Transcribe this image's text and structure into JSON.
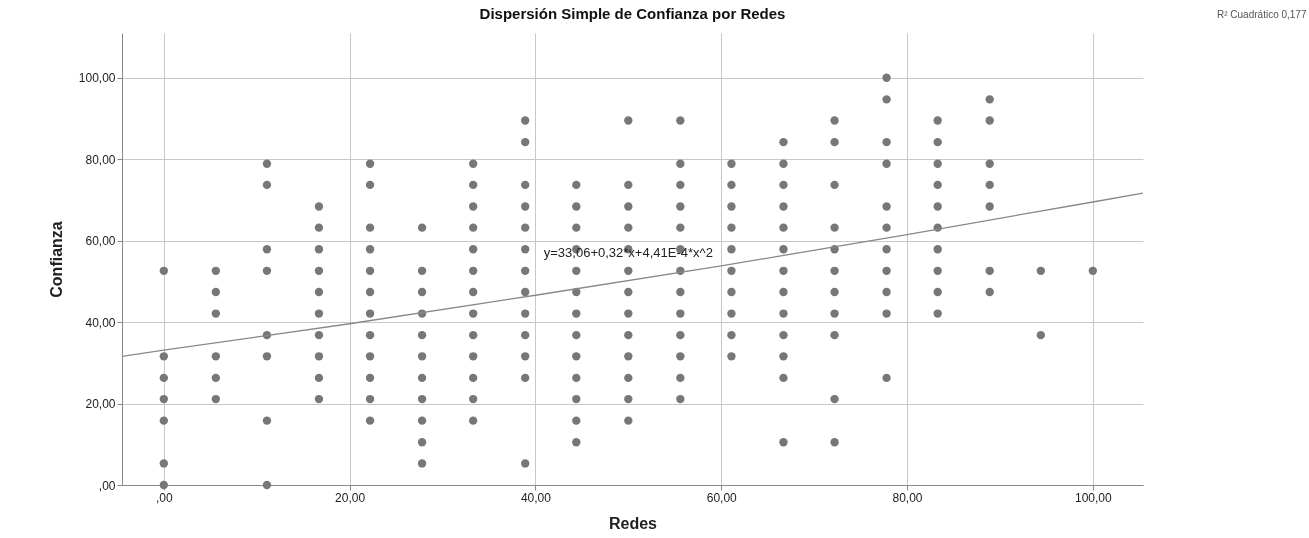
{
  "chart_data": {
    "type": "scatter",
    "title": "Dispersión Simple de Confianza por Redes",
    "xlabel": "Redes",
    "ylabel": "Confianza",
    "xlim": [
      -4.5,
      105.4
    ],
    "ylim": [
      0,
      111
    ],
    "xticks": [
      {
        "value": 0,
        "label": ",00"
      },
      {
        "value": 20,
        "label": "20,00"
      },
      {
        "value": 40,
        "label": "40,00"
      },
      {
        "value": 60,
        "label": "60,00"
      },
      {
        "value": 80,
        "label": "80,00"
      },
      {
        "value": 100,
        "label": "100,00"
      }
    ],
    "yticks": [
      {
        "value": 0,
        "label": ",00"
      },
      {
        "value": 20,
        "label": "20,00"
      },
      {
        "value": 40,
        "label": "40,00"
      },
      {
        "value": 60,
        "label": "60,00"
      },
      {
        "value": 80,
        "label": "80,00"
      },
      {
        "value": 100,
        "label": "100,00"
      }
    ],
    "grid": true,
    "marker": "circle",
    "annotations": [
      {
        "text": "y=33,06+0,32*x+4,41E-4*x^2",
        "x": 50,
        "y": 57
      },
      "R² Cuadrático 0,177"
    ],
    "series": [
      {
        "color": "#777777",
        "x": [
          0,
          0,
          0,
          0,
          0,
          0,
          0,
          5.6,
          5.6,
          5.6,
          5.6,
          5.6,
          5.6,
          11.1,
          11.1,
          11.1,
          11.1,
          11.1,
          11.1,
          11.1,
          11.1,
          16.7,
          16.7,
          16.7,
          16.7,
          16.7,
          16.7,
          16.7,
          16.7,
          16.7,
          16.7,
          22.2,
          22.2,
          22.2,
          22.2,
          22.2,
          22.2,
          22.2,
          22.2,
          22.2,
          22.2,
          22.2,
          22.2,
          27.8,
          27.8,
          27.8,
          27.8,
          27.8,
          27.8,
          27.8,
          27.8,
          27.8,
          27.8,
          27.8,
          33.3,
          33.3,
          33.3,
          33.3,
          33.3,
          33.3,
          33.3,
          33.3,
          33.3,
          33.3,
          33.3,
          33.3,
          33.3,
          38.9,
          38.9,
          38.9,
          38.9,
          38.9,
          38.9,
          38.9,
          38.9,
          38.9,
          38.9,
          38.9,
          38.9,
          38.9,
          44.4,
          44.4,
          44.4,
          44.4,
          44.4,
          44.4,
          44.4,
          44.4,
          44.4,
          44.4,
          44.4,
          44.4,
          44.4,
          50,
          50,
          50,
          50,
          50,
          50,
          50,
          50,
          50,
          50,
          50,
          50,
          50,
          55.6,
          55.6,
          55.6,
          55.6,
          55.6,
          55.6,
          55.6,
          55.6,
          55.6,
          55.6,
          55.6,
          55.6,
          55.6,
          61.1,
          61.1,
          61.1,
          61.1,
          61.1,
          61.1,
          61.1,
          61.1,
          61.1,
          61.1,
          66.7,
          66.7,
          66.7,
          66.7,
          66.7,
          66.7,
          66.7,
          66.7,
          66.7,
          66.7,
          66.7,
          66.7,
          66.7,
          72.2,
          72.2,
          72.2,
          72.2,
          72.2,
          72.2,
          72.2,
          72.2,
          72.2,
          72.2,
          72.2,
          77.8,
          77.8,
          77.8,
          77.8,
          77.8,
          77.8,
          77.8,
          77.8,
          77.8,
          77.8,
          77.8,
          83.3,
          83.3,
          83.3,
          83.3,
          83.3,
          83.3,
          83.3,
          83.3,
          83.3,
          83.3,
          88.9,
          88.9,
          88.9,
          88.9,
          88.9,
          88.9,
          88.9,
          94.4,
          94.4,
          100
        ],
        "values": [
          0,
          5.3,
          15.8,
          21.1,
          26.3,
          31.6,
          52.6,
          21.1,
          26.3,
          31.6,
          42.1,
          47.4,
          52.6,
          0,
          15.8,
          31.6,
          36.8,
          52.6,
          57.9,
          73.7,
          78.9,
          21.1,
          26.3,
          31.6,
          36.8,
          42.1,
          47.4,
          52.6,
          57.9,
          63.2,
          68.4,
          15.8,
          21.1,
          26.3,
          31.6,
          36.8,
          42.1,
          47.4,
          52.6,
          57.9,
          63.2,
          73.7,
          78.9,
          5.3,
          10.5,
          15.8,
          21.1,
          26.3,
          31.6,
          36.8,
          42.1,
          47.4,
          52.6,
          63.2,
          15.8,
          21.1,
          26.3,
          31.6,
          36.8,
          42.1,
          47.4,
          52.6,
          57.9,
          63.2,
          68.4,
          73.7,
          78.9,
          5.3,
          26.3,
          31.6,
          36.8,
          42.1,
          47.4,
          52.6,
          57.9,
          63.2,
          68.4,
          73.7,
          84.2,
          89.5,
          10.5,
          15.8,
          21.1,
          26.3,
          31.6,
          36.8,
          42.1,
          47.4,
          52.6,
          57.9,
          63.2,
          68.4,
          73.7,
          15.8,
          21.1,
          26.3,
          31.6,
          36.8,
          42.1,
          47.4,
          52.6,
          57.9,
          63.2,
          68.4,
          73.7,
          89.5,
          21.1,
          26.3,
          31.6,
          36.8,
          42.1,
          47.4,
          52.6,
          57.9,
          63.2,
          68.4,
          73.7,
          78.9,
          89.5,
          31.6,
          36.8,
          42.1,
          47.4,
          52.6,
          57.9,
          63.2,
          68.4,
          73.7,
          78.9,
          10.5,
          26.3,
          31.6,
          36.8,
          42.1,
          47.4,
          52.6,
          57.9,
          63.2,
          68.4,
          73.7,
          78.9,
          84.2,
          10.5,
          21.1,
          36.8,
          42.1,
          47.4,
          52.6,
          57.9,
          63.2,
          73.7,
          84.2,
          89.5,
          26.3,
          42.1,
          47.4,
          52.6,
          57.9,
          63.2,
          68.4,
          78.9,
          84.2,
          94.7,
          100,
          42.1,
          47.4,
          52.6,
          57.9,
          63.2,
          68.4,
          73.7,
          78.9,
          84.2,
          89.5,
          47.4,
          52.6,
          68.4,
          73.7,
          78.9,
          89.5,
          94.7,
          36.8,
          52.6,
          52.6
        ]
      },
      {
        "type": "line",
        "marker": "none",
        "color": "#888888",
        "x": [
          -4.5,
          0,
          20,
          40,
          60,
          80,
          100,
          105.4
        ],
        "values": [
          31.6,
          33.1,
          39.6,
          46.6,
          53.8,
          61.5,
          69.5,
          71.7
        ]
      }
    ]
  }
}
